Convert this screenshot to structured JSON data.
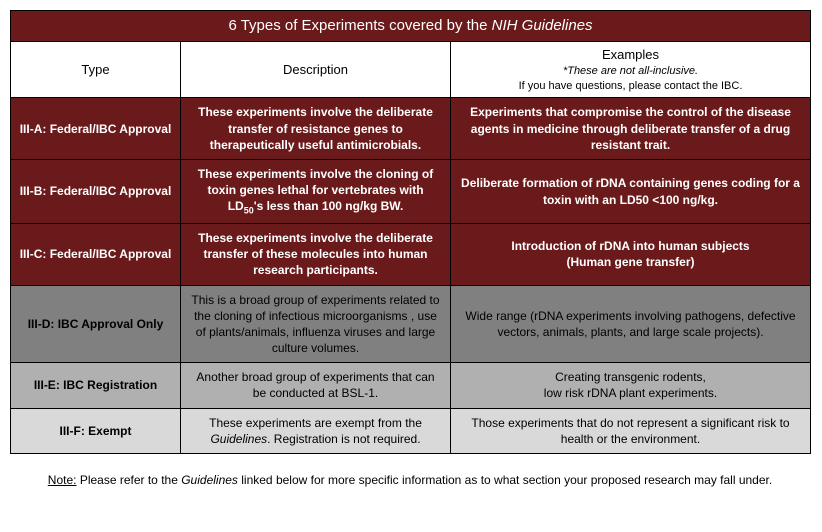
{
  "title": {
    "prefix": "6 Types of Experiments covered by the ",
    "italic": "NIH Guidelines"
  },
  "headers": {
    "type": "Type",
    "description": "Description",
    "examples": "Examples",
    "examples_sub1": "*These are not all-inclusive.",
    "examples_sub2": "If you have questions, please contact the IBC."
  },
  "rows": [
    {
      "class": "dark-red",
      "type_code": "III-A",
      "type_label": ":  Federal/IBC Approval",
      "description": "These experiments involve the deliberate transfer of resistance genes to therapeutically useful antimicrobials.",
      "examples": "Experiments that compromise the control of the disease agents in medicine through deliberate transfer of a drug resistant trait."
    },
    {
      "class": "dark-red",
      "type_code": "III-B",
      "type_label": ":  Federal/IBC Approval",
      "desc_before": "These experiments involve the cloning of toxin genes lethal for vertebrates with LD",
      "desc_sub": "50",
      "desc_after": "'s less than 100 ng/kg BW.",
      "examples": "Deliberate formation of rDNA containing genes coding for a toxin with an LD50 <100 ng/kg."
    },
    {
      "class": "dark-red",
      "type_code": "III-C",
      "type_label": ":  Federal/IBC Approval",
      "description": "These experiments involve the deliberate transfer of these molecules into human research participants.",
      "examples_line1": "Introduction of rDNA into human subjects",
      "examples_line2": "(Human gene transfer)"
    },
    {
      "class": "gray-dark",
      "type_code": "III-D",
      "type_label": ":  IBC Approval Only",
      "description": "This is a broad group of experiments related to the cloning of infectious microorganisms , use of plants/animals, influenza viruses and large culture volumes.",
      "examples": "Wide range (rDNA experiments involving pathogens, defective vectors, animals, plants, and large scale projects)."
    },
    {
      "class": "gray-mid",
      "type_code": "III-E",
      "type_label": ":  IBC Registration",
      "description": "Another broad group of experiments that can be conducted at BSL-1.",
      "examples_line1": "Creating transgenic rodents,",
      "examples_line2": "low risk rDNA plant experiments."
    },
    {
      "class": "gray-light",
      "type_code": "III-F",
      "type_label": ": Exempt",
      "desc_before": "These experiments are exempt from the ",
      "desc_italic": "Guidelines",
      "desc_after": ". Registration is not required.",
      "examples": "Those experiments that do not represent a significant risk to health or the environment."
    }
  ],
  "footnote": {
    "label": "Note:",
    "before": " Please refer to the ",
    "italic": "Guidelines",
    "after": " linked below for more specific information as to what section your proposed research may fall under."
  },
  "colors": {
    "dark_red": "#6a1a1a",
    "gray_dark": "#808080",
    "gray_mid": "#b0b0b0",
    "gray_light": "#d9d9d9",
    "border": "#000000",
    "white": "#ffffff"
  }
}
